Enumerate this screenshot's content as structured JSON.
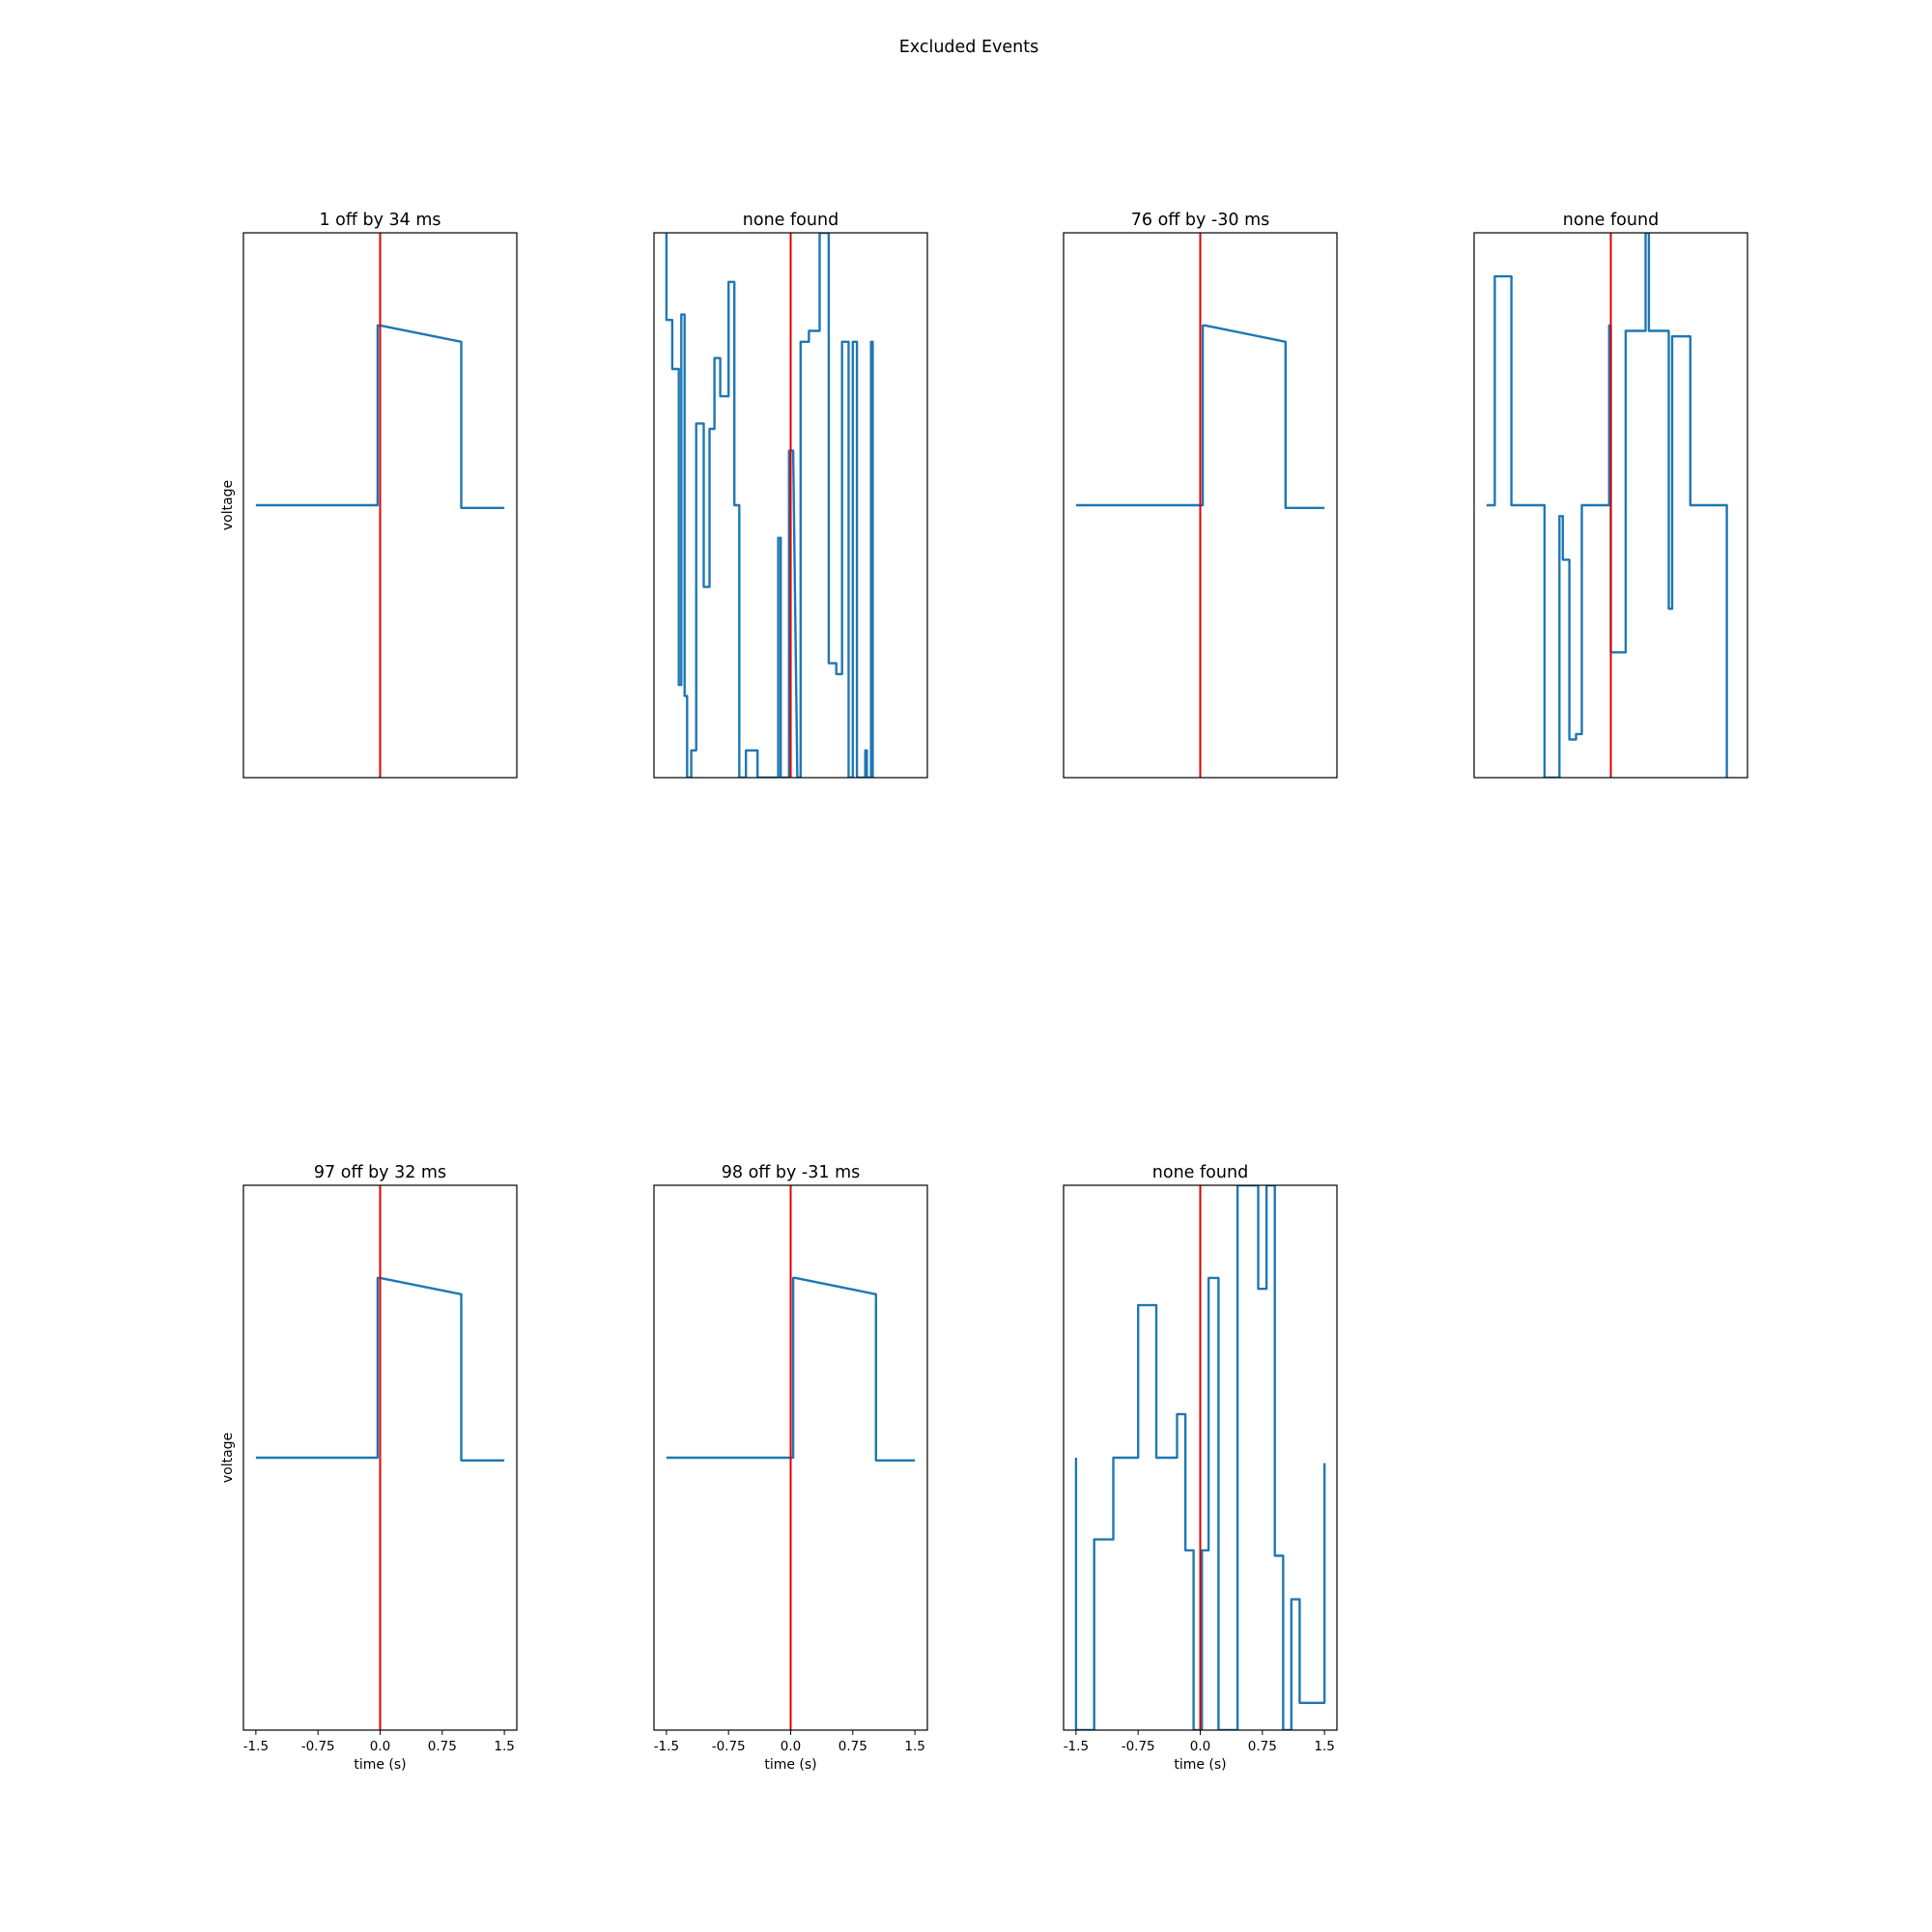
{
  "figure": {
    "title": "Excluded Events"
  },
  "chart_data": [
    {
      "type": "line",
      "title": "1 off by 34 ms",
      "ylabel": "voltage",
      "xlabel": "",
      "xticks": [],
      "xlim": [
        -1.65,
        1.65
      ],
      "ylim": [
        0,
        1
      ],
      "event_marker_x": 0.0,
      "series": [
        {
          "name": "",
          "x": [
            -1.5,
            -0.03,
            -0.03,
            0.0,
            0.98,
            0.98,
            1.5
          ],
          "y": [
            0.5,
            0.5,
            0.83,
            0.83,
            0.8,
            0.495,
            0.495
          ]
        }
      ]
    },
    {
      "type": "line",
      "title": "none found",
      "ylabel": "",
      "xlabel": "",
      "xticks": [],
      "xlim": [
        -1.65,
        1.65
      ],
      "ylim": [
        0,
        1
      ],
      "event_marker_x": 0.0,
      "series": [
        {
          "name": "",
          "x": [
            -1.5,
            -1.5,
            -1.43,
            -1.43,
            -1.35,
            -1.35,
            -1.32,
            -1.32,
            -1.28,
            -1.28,
            -1.25,
            -1.25,
            -1.2,
            -1.2,
            -1.14,
            -1.14,
            -1.05,
            -1.05,
            -0.98,
            -0.98,
            -0.92,
            -0.92,
            -0.85,
            -0.85,
            -0.75,
            -0.75,
            -0.68,
            -0.68,
            -0.62,
            -0.62,
            -0.54,
            -0.54,
            -0.4,
            -0.4,
            -0.15,
            -0.15,
            -0.12,
            -0.12,
            -0.02,
            -0.02,
            0.03,
            0.08,
            0.12,
            0.12,
            0.22,
            0.22,
            0.35,
            0.35,
            0.46,
            0.46,
            0.55,
            0.55,
            0.62,
            0.62,
            0.7,
            0.7,
            0.75,
            0.75,
            0.8,
            0.8,
            0.9,
            0.9,
            0.92,
            0.92,
            0.97,
            0.97,
            0.99,
            0.99
          ],
          "y": [
            1.0,
            0.84,
            0.84,
            0.75,
            0.75,
            0.17,
            0.17,
            0.85,
            0.85,
            0.15,
            0.15,
            0.0,
            0.0,
            0.05,
            0.05,
            0.65,
            0.65,
            0.35,
            0.35,
            0.64,
            0.64,
            0.77,
            0.77,
            0.7,
            0.7,
            0.91,
            0.91,
            0.5,
            0.5,
            0.0,
            0.0,
            0.05,
            0.05,
            0.0,
            0.0,
            0.44,
            0.44,
            0.0,
            0.0,
            0.6,
            0.6,
            0.0,
            0.0,
            0.8,
            0.8,
            0.82,
            0.82,
            1.0,
            1.0,
            0.21,
            0.21,
            0.19,
            0.19,
            0.8,
            0.8,
            0.0,
            0.0,
            0.8,
            0.8,
            0.0,
            0.0,
            0.05,
            0.05,
            0.0,
            0.0,
            0.8,
            0.8,
            0.0
          ]
        }
      ]
    },
    {
      "type": "line",
      "title": "76 off by -30 ms",
      "ylabel": "",
      "xlabel": "",
      "xticks": [],
      "xlim": [
        -1.65,
        1.65
      ],
      "ylim": [
        0,
        1
      ],
      "event_marker_x": 0.0,
      "series": [
        {
          "name": "",
          "x": [
            -1.5,
            0.03,
            0.03,
            0.06,
            1.03,
            1.03,
            1.5
          ],
          "y": [
            0.5,
            0.5,
            0.83,
            0.83,
            0.8,
            0.495,
            0.495
          ]
        }
      ]
    },
    {
      "type": "line",
      "title": "none found",
      "ylabel": "",
      "xlabel": "",
      "xticks": [],
      "xlim": [
        -1.65,
        1.65
      ],
      "ylim": [
        0,
        1
      ],
      "event_marker_x": 0.0,
      "series": [
        {
          "name": "",
          "x": [
            -1.5,
            -1.4,
            -1.4,
            -1.2,
            -1.2,
            -1.2,
            -0.8,
            -0.8,
            -0.62,
            -0.62,
            -0.58,
            -0.58,
            -0.5,
            -0.5,
            -0.42,
            -0.42,
            -0.35,
            -0.35,
            -0.02,
            -0.02,
            0.0,
            0.0,
            0.18,
            0.18,
            0.42,
            0.42,
            0.46,
            0.46,
            0.7,
            0.7,
            0.74,
            0.74,
            0.96,
            0.96,
            1.4,
            1.4
          ],
          "y": [
            0.5,
            0.5,
            0.92,
            0.92,
            0.5,
            0.5,
            0.5,
            0.0,
            0.0,
            0.48,
            0.48,
            0.4,
            0.4,
            0.07,
            0.07,
            0.08,
            0.08,
            0.5,
            0.5,
            0.83,
            0.83,
            0.23,
            0.23,
            0.82,
            0.82,
            1.0,
            1.0,
            0.82,
            0.82,
            0.31,
            0.31,
            0.81,
            0.81,
            0.5,
            0.5,
            0.0
          ]
        }
      ]
    },
    {
      "type": "line",
      "title": "97 off by 32 ms",
      "ylabel": "voltage",
      "xlabel": "time (s)",
      "xticks": [
        "-1.5",
        "-0.75",
        "0.0",
        "0.75",
        "1.5"
      ],
      "xtick_values": [
        -1.5,
        -0.75,
        0.0,
        0.75,
        1.5
      ],
      "xlim": [
        -1.65,
        1.65
      ],
      "ylim": [
        0,
        1
      ],
      "event_marker_x": 0.0,
      "series": [
        {
          "name": "",
          "x": [
            -1.5,
            -0.03,
            -0.03,
            0.0,
            0.98,
            0.98,
            1.5
          ],
          "y": [
            0.5,
            0.5,
            0.83,
            0.83,
            0.8,
            0.495,
            0.495
          ]
        }
      ]
    },
    {
      "type": "line",
      "title": "98 off by -31 ms",
      "ylabel": "",
      "xlabel": "time (s)",
      "xticks": [
        "-1.5",
        "-0.75",
        "0.0",
        "0.75",
        "1.5"
      ],
      "xtick_values": [
        -1.5,
        -0.75,
        0.0,
        0.75,
        1.5
      ],
      "xlim": [
        -1.65,
        1.65
      ],
      "ylim": [
        0,
        1
      ],
      "event_marker_x": 0.0,
      "series": [
        {
          "name": "",
          "x": [
            -1.5,
            0.03,
            0.03,
            0.06,
            1.03,
            1.03,
            1.5
          ],
          "y": [
            0.5,
            0.5,
            0.83,
            0.83,
            0.8,
            0.495,
            0.495
          ]
        }
      ]
    },
    {
      "type": "line",
      "title": "none found",
      "ylabel": "",
      "xlabel": "time (s)",
      "xticks": [
        "-1.5",
        "-0.75",
        "0.0",
        "0.75",
        "1.5"
      ],
      "xtick_values": [
        -1.5,
        -0.75,
        0.0,
        0.75,
        1.5
      ],
      "xlim": [
        -1.65,
        1.65
      ],
      "ylim": [
        0,
        1
      ],
      "event_marker_x": 0.0,
      "series": [
        {
          "name": "",
          "x": [
            -1.5,
            -1.5,
            -1.28,
            -1.28,
            -1.05,
            -1.05,
            -0.75,
            -0.75,
            -0.53,
            -0.53,
            -0.28,
            -0.28,
            -0.18,
            -0.18,
            -0.08,
            -0.08,
            0.02,
            0.02,
            0.1,
            0.1,
            0.22,
            0.22,
            0.45,
            0.45,
            0.7,
            0.7,
            0.8,
            0.8,
            0.9,
            0.9,
            1.0,
            1.0,
            1.1,
            1.1,
            1.2,
            1.2,
            1.5,
            1.5
          ],
          "y": [
            0.5,
            0.0,
            0.0,
            0.35,
            0.35,
            0.5,
            0.5,
            0.78,
            0.78,
            0.5,
            0.5,
            0.58,
            0.58,
            0.33,
            0.33,
            0.0,
            0.0,
            0.33,
            0.33,
            0.83,
            0.83,
            0.0,
            0.0,
            1.0,
            1.0,
            0.81,
            0.81,
            1.0,
            1.0,
            0.32,
            0.32,
            0.0,
            0.0,
            0.24,
            0.24,
            0.05,
            0.05,
            0.49
          ]
        }
      ]
    }
  ]
}
